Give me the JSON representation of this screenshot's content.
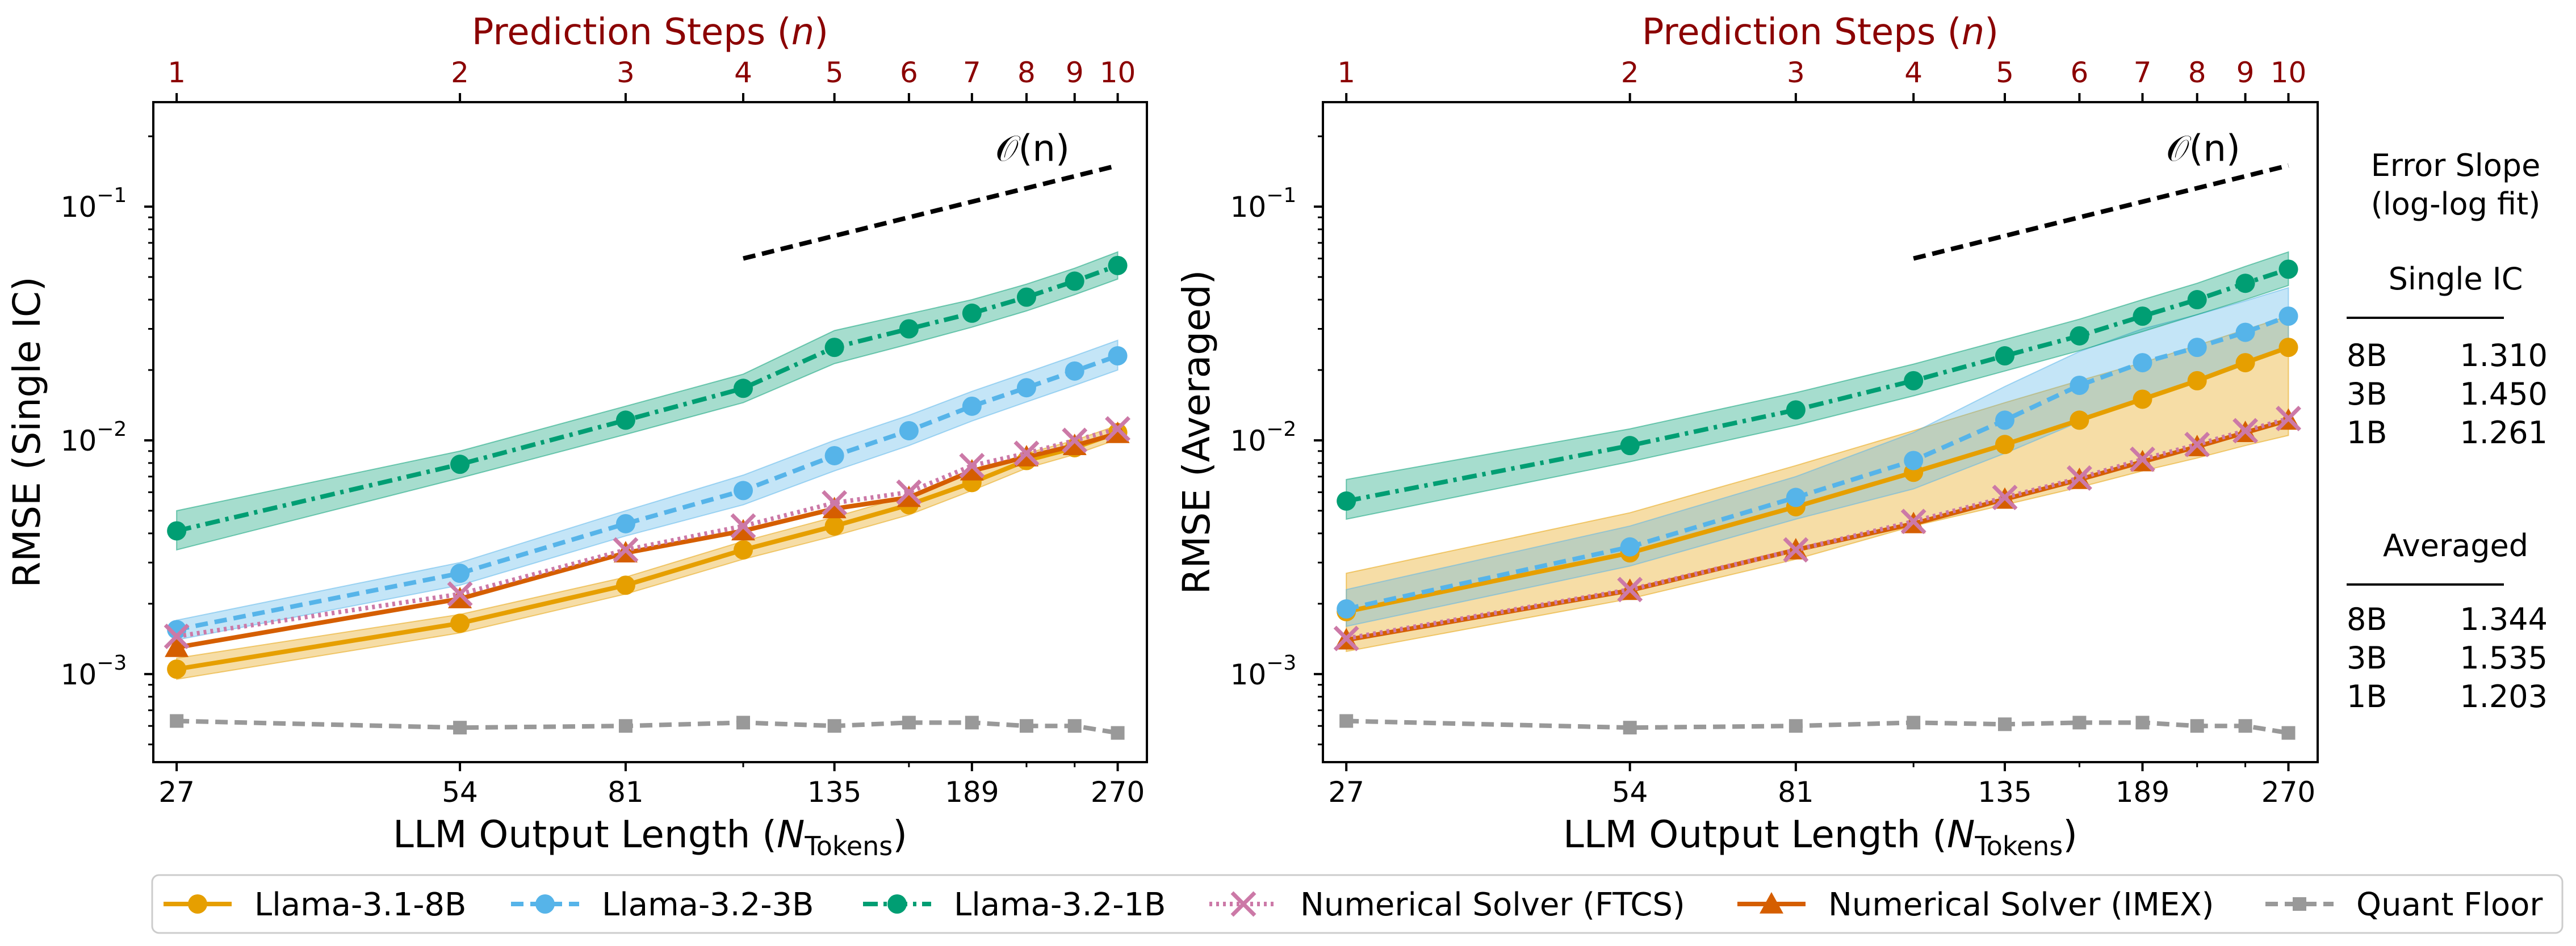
{
  "chart_data": [
    {
      "type": "line",
      "panel": "left",
      "ylabel": "RMSE (Single IC)",
      "xlabel": "LLM Output Length (",
      "xlabel_sym": "N",
      "xlabel_sub": "Tokens",
      "xlabel_close": ")",
      "top_title": "Prediction Steps (",
      "top_title_sym": "n",
      "top_title_close": ")",
      "xscale": "log",
      "yscale": "log",
      "xlim": [
        25.5,
        290
      ],
      "ylim": [
        0.00042,
        0.28
      ],
      "x": [
        27,
        54,
        81,
        108,
        135,
        162,
        189,
        216,
        243,
        270
      ],
      "bottom_ticks": [
        27,
        54,
        81,
        135,
        189,
        270
      ],
      "bottom_tick_labels": [
        "27",
        "54",
        "81",
        "135",
        "189",
        "270"
      ],
      "top_ticks": [
        27,
        54,
        81,
        108,
        135,
        162,
        189,
        216,
        243,
        270
      ],
      "top_tick_labels": [
        "1",
        "2",
        "3",
        "4",
        "5",
        "6",
        "7",
        "8",
        "9",
        "10"
      ],
      "y_ticks": [
        0.001,
        0.01,
        0.1
      ],
      "y_tick_bases": [
        "10",
        "10",
        "10"
      ],
      "y_tick_exps": [
        "−3",
        "−2",
        "−1"
      ],
      "reference": {
        "label": "𝒪(n)",
        "x": [
          108,
          270
        ],
        "y": [
          0.06,
          0.15
        ]
      },
      "series": [
        {
          "name": "Llama-3.1-8B",
          "color": "#e69f00",
          "marker": "circle",
          "dash": "solid",
          "values": [
            0.00105,
            0.00165,
            0.0024,
            0.0034,
            0.0043,
            0.0053,
            0.0066,
            0.0082,
            0.0093,
            0.0108
          ],
          "lower": [
            0.00095,
            0.0015,
            0.0022,
            0.0031,
            0.0039,
            0.0048,
            0.0061,
            0.0076,
            0.0087,
            0.0101
          ],
          "upper": [
            0.00117,
            0.0018,
            0.0026,
            0.0037,
            0.0047,
            0.0058,
            0.0072,
            0.0088,
            0.01,
            0.0116
          ]
        },
        {
          "name": "Llama-3.2-3B",
          "color": "#56b4e9",
          "marker": "circle",
          "dash": "dashed",
          "values": [
            0.00155,
            0.0027,
            0.0044,
            0.0061,
            0.0086,
            0.011,
            0.014,
            0.0168,
            0.0198,
            0.023
          ],
          "lower": [
            0.0014,
            0.0024,
            0.0039,
            0.0053,
            0.0074,
            0.0095,
            0.0121,
            0.0146,
            0.0172,
            0.02
          ],
          "upper": [
            0.0017,
            0.003,
            0.005,
            0.0071,
            0.01,
            0.0128,
            0.0162,
            0.0195,
            0.023,
            0.0268
          ]
        },
        {
          "name": "Llama-3.2-1B",
          "color": "#009e73",
          "marker": "circle",
          "dash": "dashdot",
          "values": [
            0.0041,
            0.0079,
            0.0122,
            0.0167,
            0.025,
            0.03,
            0.035,
            0.041,
            0.048,
            0.056
          ],
          "lower": [
            0.0034,
            0.0069,
            0.0106,
            0.0145,
            0.0213,
            0.0258,
            0.0305,
            0.0358,
            0.042,
            0.049
          ],
          "upper": [
            0.005,
            0.009,
            0.014,
            0.0192,
            0.0295,
            0.0348,
            0.04,
            0.0466,
            0.0545,
            0.064
          ]
        },
        {
          "name": "Numerical Solver (FTCS)",
          "color": "#cc79a7",
          "marker": "x",
          "dash": "dotted",
          "values": [
            0.00145,
            0.0022,
            0.0034,
            0.0043,
            0.0054,
            0.006,
            0.0078,
            0.0088,
            0.01,
            0.0112
          ]
        },
        {
          "name": "Numerical Solver (IMEX)",
          "color": "#d55e00",
          "marker": "triangle",
          "dash": "solid",
          "values": [
            0.0013,
            0.0021,
            0.0033,
            0.0041,
            0.0051,
            0.0057,
            0.0074,
            0.0085,
            0.0095,
            0.0107
          ]
        },
        {
          "name": "Quant Floor",
          "color": "#999999",
          "marker": "square",
          "dash": "dashed",
          "values": [
            0.00063,
            0.00059,
            0.0006,
            0.00062,
            0.0006,
            0.00062,
            0.00062,
            0.0006,
            0.0006,
            0.00056
          ]
        }
      ]
    },
    {
      "type": "line",
      "panel": "right",
      "ylabel": "RMSE (Averaged)",
      "xlabel": "LLM Output Length (",
      "xlabel_sym": "N",
      "xlabel_sub": "Tokens",
      "xlabel_close": ")",
      "top_title": "Prediction Steps (",
      "top_title_sym": "n",
      "top_title_close": ")",
      "xscale": "log",
      "yscale": "log",
      "xlim": [
        25.5,
        290
      ],
      "ylim": [
        0.00042,
        0.28
      ],
      "x": [
        27,
        54,
        81,
        108,
        135,
        162,
        189,
        216,
        243,
        270
      ],
      "bottom_ticks": [
        27,
        54,
        81,
        135,
        189,
        270
      ],
      "bottom_tick_labels": [
        "27",
        "54",
        "81",
        "135",
        "189",
        "270"
      ],
      "top_ticks": [
        27,
        54,
        81,
        108,
        135,
        162,
        189,
        216,
        243,
        270
      ],
      "top_tick_labels": [
        "1",
        "2",
        "3",
        "4",
        "5",
        "6",
        "7",
        "8",
        "9",
        "10"
      ],
      "y_ticks": [
        0.001,
        0.01,
        0.1
      ],
      "y_tick_bases": [
        "10",
        "10",
        "10"
      ],
      "y_tick_exps": [
        "−3",
        "−2",
        "−1"
      ],
      "reference": {
        "label": "𝒪(n)",
        "x": [
          108,
          270
        ],
        "y": [
          0.06,
          0.15
        ]
      },
      "series": [
        {
          "name": "Llama-3.1-8B",
          "color": "#e69f00",
          "marker": "circle",
          "dash": "solid",
          "values": [
            0.00185,
            0.0033,
            0.0052,
            0.0073,
            0.0096,
            0.0122,
            0.015,
            0.018,
            0.0215,
            0.025
          ],
          "lower": [
            0.00125,
            0.0021,
            0.0031,
            0.0043,
            0.0053,
            0.0063,
            0.0074,
            0.0084,
            0.0095,
            0.0105
          ],
          "upper": [
            0.0027,
            0.0049,
            0.0078,
            0.011,
            0.0145,
            0.018,
            0.0215,
            0.0255,
            0.0298,
            0.034
          ]
        },
        {
          "name": "Llama-3.2-3B",
          "color": "#56b4e9",
          "marker": "circle",
          "dash": "dashed",
          "values": [
            0.0019,
            0.0035,
            0.0057,
            0.0082,
            0.0122,
            0.0172,
            0.0215,
            0.025,
            0.029,
            0.034
          ],
          "lower": [
            0.0016,
            0.0029,
            0.0046,
            0.0062,
            0.0088,
            0.012,
            0.015,
            0.0178,
            0.021,
            0.025
          ],
          "upper": [
            0.0023,
            0.0043,
            0.007,
            0.0108,
            0.017,
            0.024,
            0.03,
            0.0345,
            0.0395,
            0.045
          ]
        },
        {
          "name": "Llama-3.2-1B",
          "color": "#009e73",
          "marker": "circle",
          "dash": "dashdot",
          "values": [
            0.0055,
            0.0095,
            0.0135,
            0.018,
            0.023,
            0.028,
            0.034,
            0.04,
            0.047,
            0.054
          ],
          "lower": [
            0.0046,
            0.0081,
            0.0116,
            0.0155,
            0.0198,
            0.0242,
            0.0292,
            0.0345,
            0.04,
            0.046
          ],
          "upper": [
            0.0068,
            0.0112,
            0.016,
            0.0212,
            0.027,
            0.033,
            0.04,
            0.047,
            0.0555,
            0.064
          ]
        },
        {
          "name": "Numerical Solver (FTCS)",
          "color": "#cc79a7",
          "marker": "x",
          "dash": "dotted",
          "values": [
            0.00142,
            0.0023,
            0.0034,
            0.0045,
            0.0057,
            0.0069,
            0.0083,
            0.0096,
            0.011,
            0.0124
          ]
        },
        {
          "name": "Numerical Solver (IMEX)",
          "color": "#d55e00",
          "marker": "triangle",
          "dash": "solid",
          "values": [
            0.0014,
            0.00228,
            0.0034,
            0.0044,
            0.0056,
            0.0068,
            0.0081,
            0.0094,
            0.0108,
            0.0122
          ]
        },
        {
          "name": "Quant Floor",
          "color": "#999999",
          "marker": "square",
          "dash": "dashed",
          "values": [
            0.00063,
            0.00059,
            0.0006,
            0.00062,
            0.00061,
            0.00062,
            0.00062,
            0.0006,
            0.0006,
            0.00056
          ]
        }
      ]
    }
  ],
  "side_table": {
    "title_line1": "Error Slope",
    "title_line2": "(log-log fit)",
    "sections": [
      {
        "heading": "Single IC",
        "rows": [
          {
            "model": "8B",
            "slope": "1.310"
          },
          {
            "model": "3B",
            "slope": "1.450"
          },
          {
            "model": "1B",
            "slope": "1.261"
          }
        ]
      },
      {
        "heading": "Averaged",
        "rows": [
          {
            "model": "8B",
            "slope": "1.344"
          },
          {
            "model": "3B",
            "slope": "1.535"
          },
          {
            "model": "1B",
            "slope": "1.203"
          }
        ]
      }
    ]
  },
  "legend": [
    {
      "label": "Llama-3.1-8B",
      "color": "#e69f00",
      "marker": "circle",
      "dash": "solid"
    },
    {
      "label": "Llama-3.2-3B",
      "color": "#56b4e9",
      "marker": "circle",
      "dash": "dashed"
    },
    {
      "label": "Llama-3.2-1B",
      "color": "#009e73",
      "marker": "circle",
      "dash": "dashdot"
    },
    {
      "label": "Numerical Solver (FTCS)",
      "color": "#cc79a7",
      "marker": "x",
      "dash": "dotted"
    },
    {
      "label": "Numerical Solver (IMEX)",
      "color": "#d55e00",
      "marker": "triangle",
      "dash": "solid"
    },
    {
      "label": "Quant Floor",
      "color": "#999999",
      "marker": "square",
      "dash": "dashed"
    }
  ]
}
